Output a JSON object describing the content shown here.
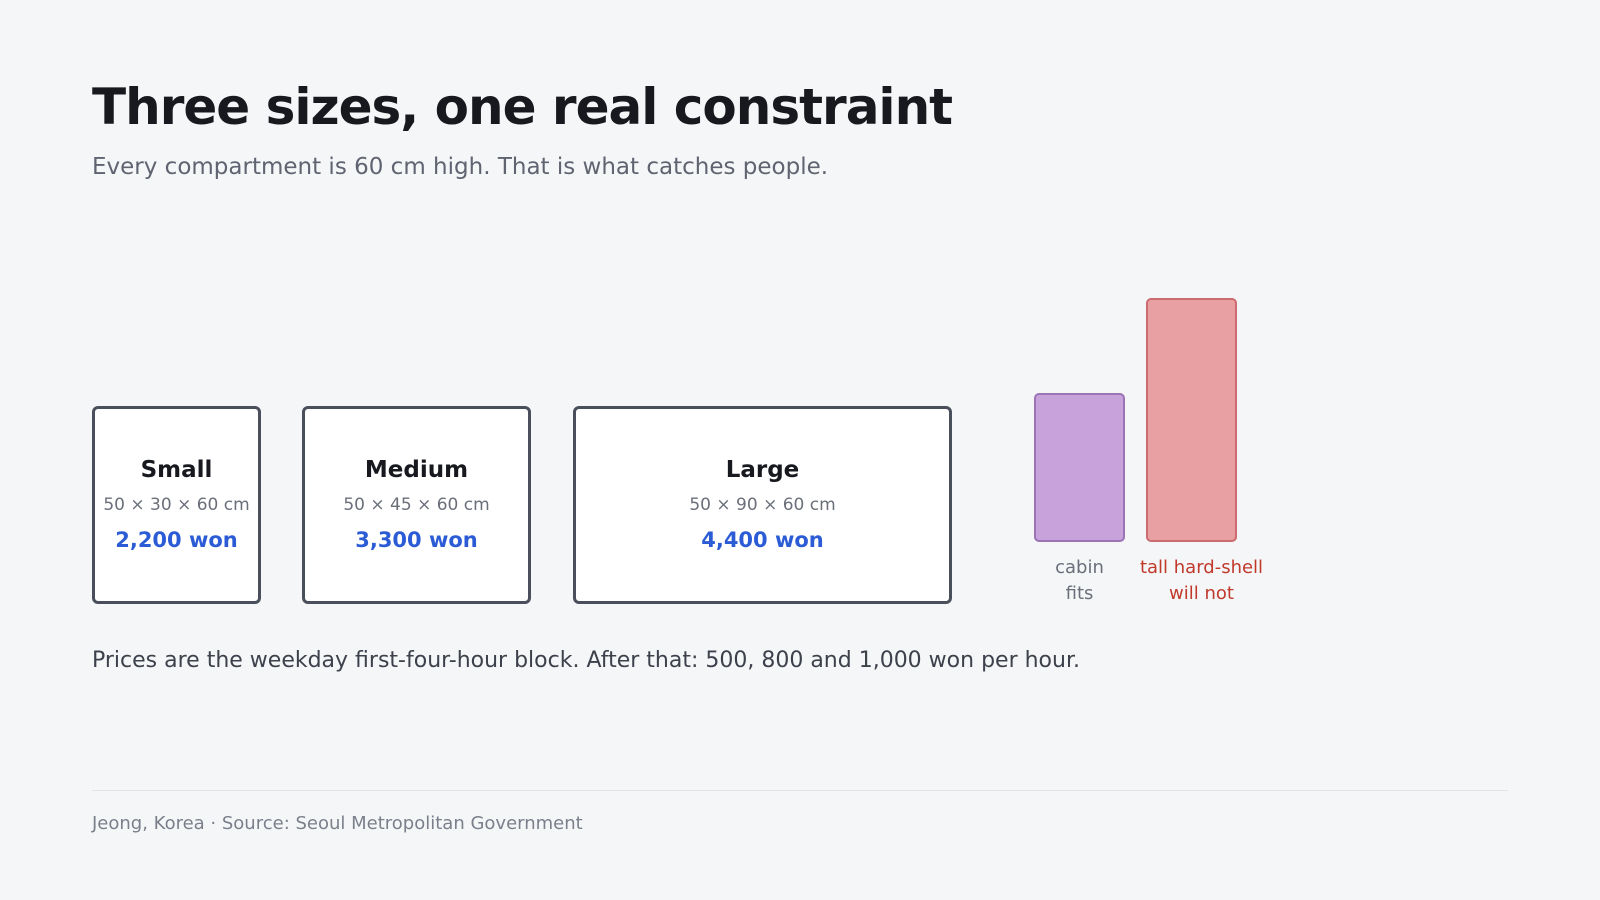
{
  "header": {
    "title": "Three sizes, one real constraint",
    "subtitle": "Every compartment is 60 cm high. That is what catches people."
  },
  "lockers": [
    {
      "name": "Small",
      "dims": "50 × 30 × 60 cm",
      "price": "2,200 won"
    },
    {
      "name": "Medium",
      "dims": "50 × 45 × 60 cm",
      "price": "3,300 won"
    },
    {
      "name": "Large",
      "dims": "50 × 90 × 60 cm",
      "price": "4,400 won"
    }
  ],
  "bags": {
    "cabin": {
      "label_line1": "cabin",
      "label_line2": "fits",
      "color": "#c8a2da"
    },
    "tall": {
      "label_line1": "tall hard-shell",
      "label_line2": "will not",
      "color": "#e8a0a2",
      "label_color": "#c0392b"
    }
  },
  "note": "Prices are the weekday first-four-hour block. After that: 500, 800 and 1,000 won per hour.",
  "footer": "Jeong, Korea · Source: Seoul Metropolitan Government",
  "colors": {
    "accent_price": "#2c5bd6",
    "locker_border": "#4a4f5c",
    "background": "#f5f6f8"
  }
}
